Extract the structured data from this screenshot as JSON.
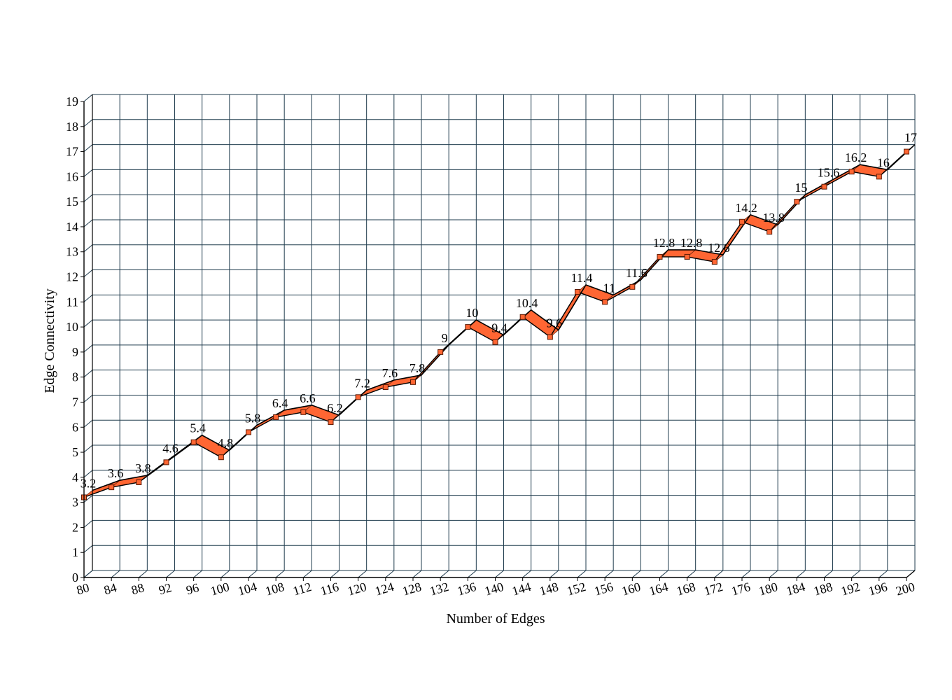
{
  "chart_data": {
    "type": "line",
    "title": "",
    "xlabel": "Number of Edges",
    "ylabel": "Edge Connectivity",
    "xlim": [
      80,
      200
    ],
    "ylim": [
      0,
      19
    ],
    "x_ticks": [
      80,
      84,
      88,
      92,
      96,
      100,
      104,
      108,
      112,
      116,
      120,
      124,
      128,
      132,
      136,
      140,
      144,
      148,
      152,
      156,
      160,
      164,
      168,
      172,
      176,
      180,
      184,
      188,
      192,
      196,
      200
    ],
    "y_ticks": [
      0,
      1,
      2,
      3,
      4,
      5,
      6,
      7,
      8,
      9,
      10,
      11,
      12,
      13,
      14,
      15,
      16,
      17,
      18,
      19
    ],
    "grid": true,
    "legend": "none",
    "style": "3d-ribbon",
    "colors": {
      "ribbon": "#ff6633",
      "ribbon_edge": "#7a2a10",
      "line": "#000000",
      "marker": "#ff6633",
      "grid": "#1f3b4d"
    },
    "series": [
      {
        "x": [
          80,
          84,
          88,
          92,
          96,
          100,
          104,
          108,
          112,
          116,
          120,
          124,
          128,
          132,
          136,
          140,
          144,
          148,
          152,
          156,
          160,
          164,
          168,
          172,
          176,
          180,
          184,
          188,
          192,
          196,
          200
        ],
        "values": [
          3.2,
          3.6,
          3.8,
          4.6,
          5.4,
          4.8,
          5.8,
          6.4,
          6.6,
          6.2,
          7.2,
          7.6,
          7.8,
          9,
          10,
          9.4,
          10.4,
          9.6,
          11.4,
          11,
          11.6,
          12.8,
          12.8,
          12.6,
          14.2,
          13.8,
          15,
          15.6,
          16.2,
          16,
          17
        ],
        "labels": [
          "3.2",
          "3.6",
          "3.8",
          "4.6",
          "5.4",
          "4.8",
          "5.8",
          "6.4",
          "6.6",
          "6.2",
          "7.2",
          "7.6",
          "7.8",
          "9",
          "10",
          "9.4",
          "10.4",
          "9.6",
          "11.4",
          "11",
          "11.6",
          "12.8",
          "12.8",
          "12.6",
          "14.2",
          "13.8",
          "15",
          "15.6",
          "16.2",
          "16",
          "17"
        ]
      }
    ]
  }
}
